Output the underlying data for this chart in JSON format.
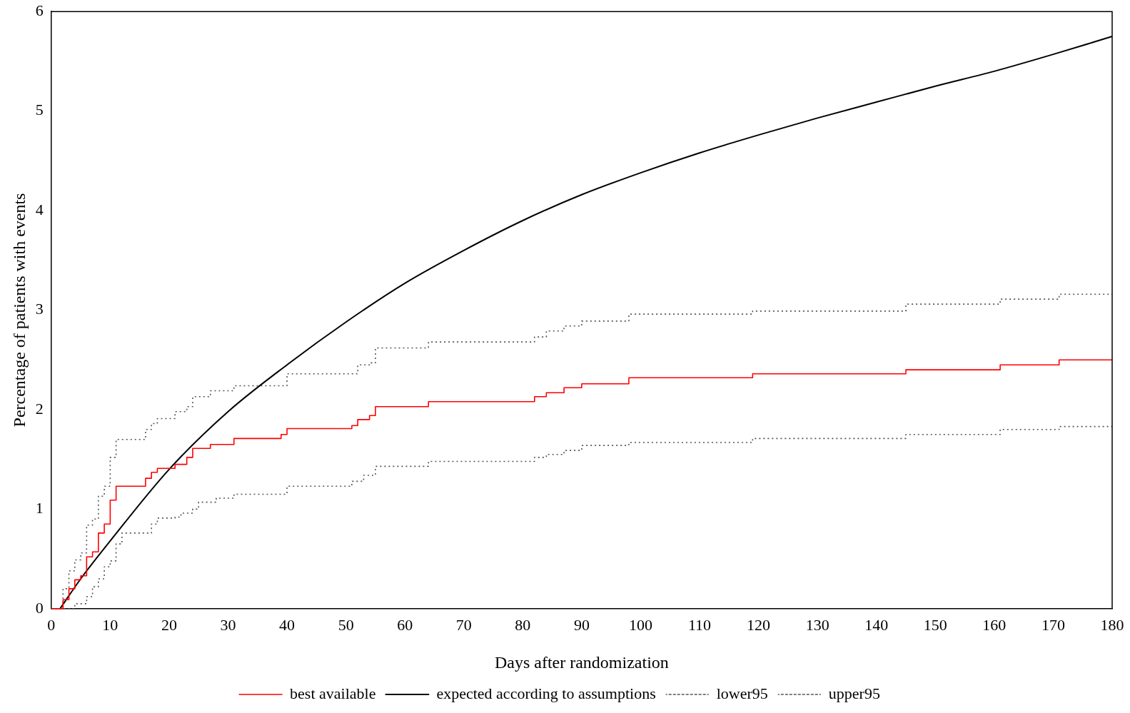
{
  "chart_data": {
    "type": "step",
    "xlabel": "Days after randomization",
    "ylabel": "Percentage of patients with events",
    "xlim": [
      0,
      180
    ],
    "xticks": [
      0,
      10,
      20,
      30,
      40,
      50,
      60,
      70,
      80,
      90,
      100,
      110,
      120,
      130,
      140,
      150,
      160,
      170,
      180
    ],
    "ylim": [
      0,
      6
    ],
    "yticks": [
      0,
      1,
      2,
      3,
      4,
      5,
      6
    ],
    "grid": false,
    "legend": "bottom",
    "marker": "none",
    "series": [
      {
        "name": "best available",
        "type": "step",
        "color": "#ff0000",
        "line_style": "solid",
        "x": [
          0,
          2,
          3,
          4,
          5,
          6,
          7,
          8,
          9,
          10,
          11,
          16,
          17,
          18,
          21,
          23,
          24,
          27,
          31,
          39,
          40,
          51,
          52,
          54,
          55,
          64,
          82,
          84,
          87,
          90,
          98,
          119,
          145,
          161,
          171,
          180
        ],
        "values": [
          0,
          0.09,
          0.2,
          0.29,
          0.33,
          0.52,
          0.57,
          0.76,
          0.85,
          1.09,
          1.23,
          1.31,
          1.37,
          1.41,
          1.45,
          1.52,
          1.61,
          1.65,
          1.71,
          1.75,
          1.81,
          1.84,
          1.9,
          1.94,
          2.03,
          2.08,
          2.13,
          2.17,
          2.22,
          2.26,
          2.32,
          2.36,
          2.4,
          2.45,
          2.5,
          2.5
        ]
      },
      {
        "name": "expected according to assumptions",
        "type": "line",
        "color": "#000000",
        "line_style": "solid",
        "x": [
          1.5,
          5,
          10,
          20,
          30,
          40,
          50,
          60,
          70,
          80,
          90,
          100,
          110,
          120,
          130,
          140,
          150,
          160,
          170,
          180
        ],
        "values": [
          0,
          0.3,
          0.68,
          1.4,
          1.98,
          2.45,
          2.88,
          3.27,
          3.6,
          3.9,
          4.16,
          4.38,
          4.58,
          4.76,
          4.93,
          5.09,
          5.25,
          5.4,
          5.57,
          5.75
        ]
      },
      {
        "name": "lower95",
        "type": "step",
        "color": "#555555",
        "line_style": "dotted",
        "x": [
          0,
          4,
          6,
          7,
          8,
          9,
          10,
          11,
          12,
          17,
          18,
          21,
          22,
          24,
          25,
          28,
          31,
          40,
          51,
          53,
          55,
          64,
          82,
          84,
          87,
          90,
          98,
          119,
          145,
          161,
          171,
          180
        ],
        "values": [
          0,
          0.05,
          0.12,
          0.22,
          0.3,
          0.42,
          0.48,
          0.65,
          0.76,
          0.85,
          0.91,
          0.92,
          0.96,
          1.0,
          1.07,
          1.11,
          1.15,
          1.23,
          1.28,
          1.34,
          1.43,
          1.48,
          1.52,
          1.55,
          1.59,
          1.64,
          1.67,
          1.71,
          1.75,
          1.8,
          1.83,
          1.83
        ]
      },
      {
        "name": "upper95",
        "type": "step",
        "color": "#555555",
        "line_style": "dotted",
        "x": [
          0,
          2,
          3,
          4,
          5,
          6,
          7,
          8,
          9,
          10,
          11,
          16,
          17,
          18,
          21,
          23,
          24,
          27,
          31,
          40,
          52,
          54,
          55,
          64,
          82,
          84,
          87,
          90,
          98,
          119,
          145,
          161,
          171,
          180
        ],
        "values": [
          0,
          0.2,
          0.38,
          0.49,
          0.56,
          0.84,
          0.9,
          1.13,
          1.23,
          1.52,
          1.7,
          1.8,
          1.86,
          1.91,
          1.98,
          2.03,
          2.13,
          2.19,
          2.24,
          2.36,
          2.45,
          2.47,
          2.62,
          2.68,
          2.73,
          2.79,
          2.84,
          2.89,
          2.96,
          2.99,
          3.06,
          3.11,
          3.16,
          3.16
        ]
      }
    ]
  }
}
